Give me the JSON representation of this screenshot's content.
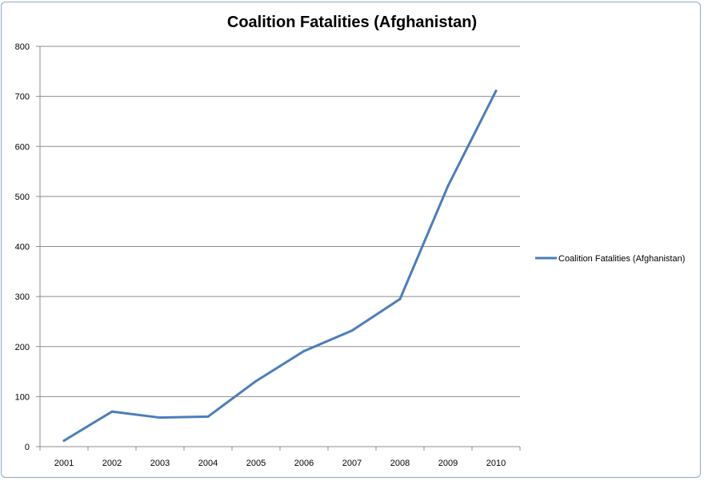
{
  "chart_data": {
    "type": "line",
    "title": "Coalition Fatalities (Afghanistan)",
    "xlabel": "",
    "ylabel": "",
    "categories": [
      "2001",
      "2002",
      "2003",
      "2004",
      "2005",
      "2006",
      "2007",
      "2008",
      "2009",
      "2010"
    ],
    "series": [
      {
        "name": "Coalition Fatalities (Afghanistan)",
        "color": "#4a7ebb",
        "values": [
          12,
          70,
          58,
          60,
          131,
          191,
          232,
          295,
          521,
          711
        ]
      }
    ],
    "yticks": [
      "0",
      "100",
      "200",
      "300",
      "400",
      "500",
      "600",
      "700",
      "800"
    ],
    "ylim": [
      0,
      800
    ],
    "grid": true,
    "legend_position": "right"
  }
}
